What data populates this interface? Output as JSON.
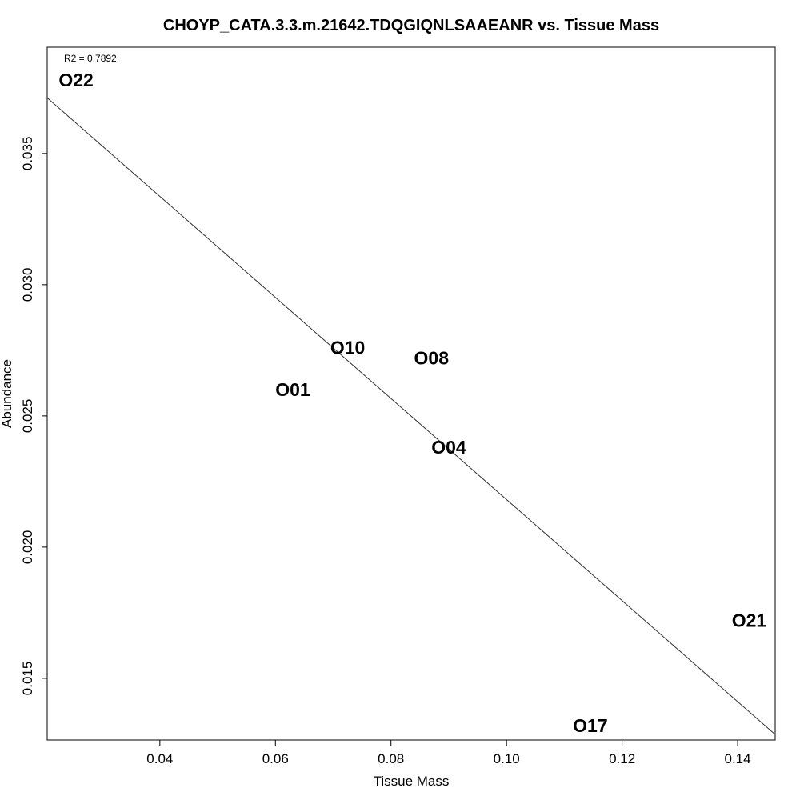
{
  "chart_data": {
    "type": "scatter",
    "title": "CHOYP_CATA.3.3.m.21642.TDQGIQNLSAAEANR vs. Tissue Mass",
    "xlabel": "Tissue Mass",
    "ylabel": "Abundance",
    "xlim": [
      0.0205,
      0.1465
    ],
    "ylim": [
      0.01265,
      0.03905
    ],
    "x_ticks": [
      0.04,
      0.06,
      0.08,
      0.1,
      0.12,
      0.14
    ],
    "x_tick_labels": [
      "0.04",
      "0.06",
      "0.08",
      "0.10",
      "0.12",
      "0.14"
    ],
    "y_ticks": [
      0.015,
      0.02,
      0.025,
      0.03,
      0.035
    ],
    "y_tick_labels": [
      "0.015",
      "0.020",
      "0.025",
      "0.030",
      "0.035"
    ],
    "grid": false,
    "points": [
      {
        "label": "O22",
        "x": 0.0255,
        "y": 0.0378
      },
      {
        "label": "O10",
        "x": 0.0725,
        "y": 0.0276
      },
      {
        "label": "O08",
        "x": 0.087,
        "y": 0.0272
      },
      {
        "label": "O01",
        "x": 0.063,
        "y": 0.026
      },
      {
        "label": "O04",
        "x": 0.09,
        "y": 0.0238
      },
      {
        "label": "O21",
        "x": 0.142,
        "y": 0.0172
      },
      {
        "label": "O17",
        "x": 0.1145,
        "y": 0.0132
      }
    ],
    "fit_line": {
      "type": "linear",
      "x": [
        0.0205,
        0.1465
      ],
      "y": [
        0.03712,
        0.01286
      ]
    },
    "annotation": "R2 = 0.7892",
    "colors": {
      "points": "#000000",
      "line": "#333333",
      "axis": "#000000"
    }
  }
}
